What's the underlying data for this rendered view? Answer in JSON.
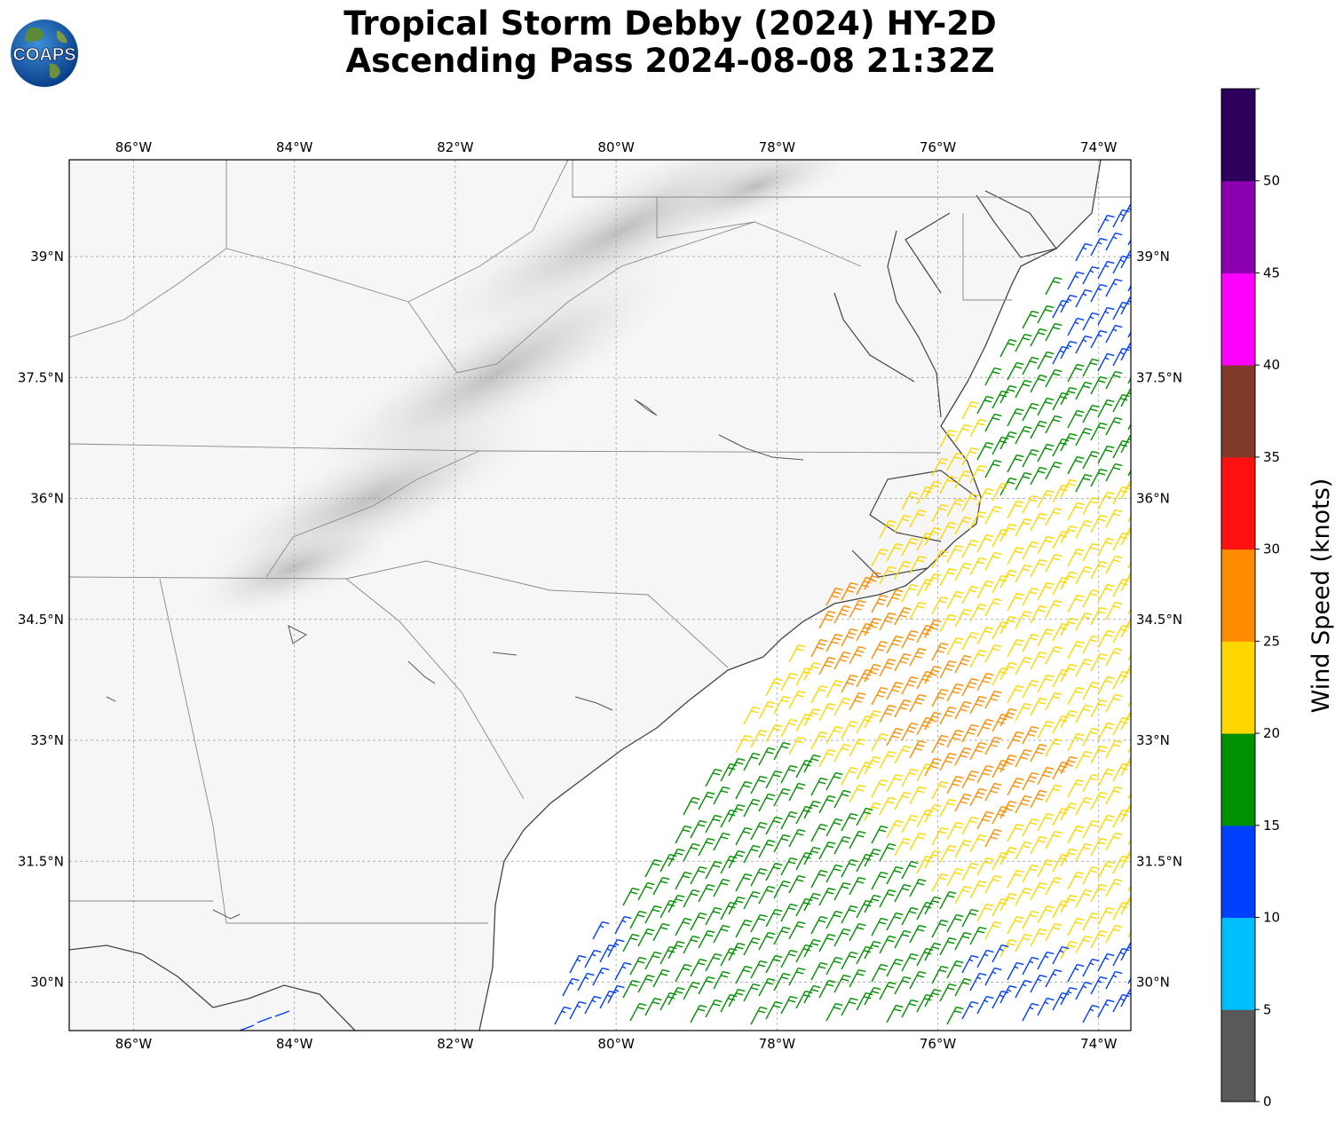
{
  "title": {
    "line1": "Tropical Storm Debby (2024) HY-2D",
    "line2": "Ascending Pass 2024-08-08 21:32Z"
  },
  "logo": {
    "text": "COAPS",
    "icon": "globe-logo"
  },
  "map": {
    "lon_range": [
      -86.8,
      -73.6
    ],
    "lat_range": [
      29.4,
      40.2
    ],
    "lon_ticks": [
      "86°W",
      "84°W",
      "82°W",
      "80°W",
      "78°W",
      "76°W",
      "74°W"
    ],
    "lat_ticks": [
      "39°N",
      "37.5°N",
      "36°N",
      "34.5°N",
      "33°N",
      "31.5°N",
      "30°N"
    ],
    "gridlines": true,
    "background": "grayscale topography"
  },
  "colorbar": {
    "label": "Wind Speed (knots)",
    "ticks": [
      "0",
      "5",
      "10",
      "15",
      "20",
      "25",
      "30",
      "35",
      "40",
      "45",
      "50"
    ],
    "colors": [
      "#595959",
      "#00bfff",
      "#0040ff",
      "#009000",
      "#ffd700",
      "#ff8c00",
      "#ff1010",
      "#803a2a",
      "#ff00ff",
      "#8b00b0",
      "#2e005e"
    ]
  },
  "wind_field": {
    "units": "knots",
    "regions": [
      "blue (10-15 kt) northeast and southwest edges",
      "green (15-20 kt)",
      "yellow (20-25 kt)",
      "orange (25-30 kt) core offshore Carolinas"
    ]
  }
}
